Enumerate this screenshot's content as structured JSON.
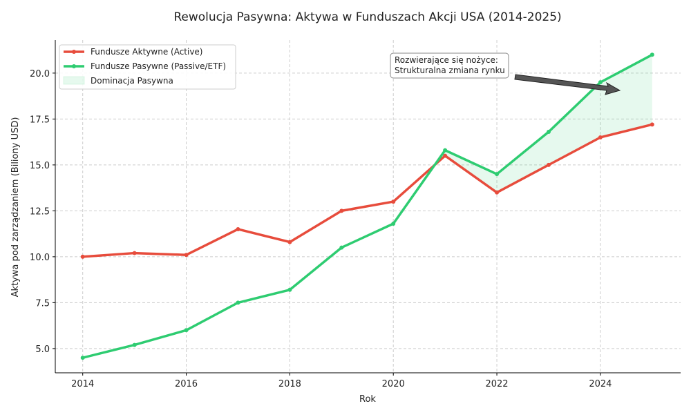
{
  "chart_data": {
    "type": "line",
    "title": "Rewolucja Pasywna: Aktywa w Funduszach Akcji USA (2014-2025)",
    "xlabel": "Rok",
    "ylabel": "Aktywa pod zarządzaniem (Biliony USD)",
    "x": [
      2014,
      2015,
      2016,
      2017,
      2018,
      2019,
      2020,
      2021,
      2022,
      2023,
      2024,
      2025
    ],
    "xlim": [
      2013.47,
      2025.55
    ],
    "ylim": [
      3.68,
      21.8
    ],
    "xticks": [
      "2014",
      "2016",
      "2018",
      "2020",
      "2022",
      "2024"
    ],
    "yticks": [
      "5.0",
      "7.5",
      "10.0",
      "12.5",
      "15.0",
      "17.5",
      "20.0"
    ],
    "grid": true,
    "legend_position": "top-left",
    "series": [
      {
        "name": "Fundusze Aktywne (Active)",
        "color": "#e74c3c",
        "values": [
          10.0,
          10.2,
          10.1,
          11.5,
          10.8,
          12.5,
          13.0,
          15.5,
          13.5,
          15.0,
          16.5,
          17.2
        ]
      },
      {
        "name": "Fundusze Pasywne (Passive/ETF)",
        "color": "#2ecc71",
        "values": [
          4.5,
          5.2,
          6.0,
          7.5,
          8.2,
          10.5,
          11.8,
          15.8,
          14.5,
          16.8,
          19.5,
          21.0
        ]
      }
    ],
    "fill": {
      "name": "Dominacja Pasywna",
      "color": "#2ecc71"
    },
    "annotation": {
      "lines": [
        "Rozwierające się nożyce:",
        "Strukturalna zmiana rynku"
      ],
      "arrow_to": [
        2024.4,
        19.1
      ]
    }
  }
}
